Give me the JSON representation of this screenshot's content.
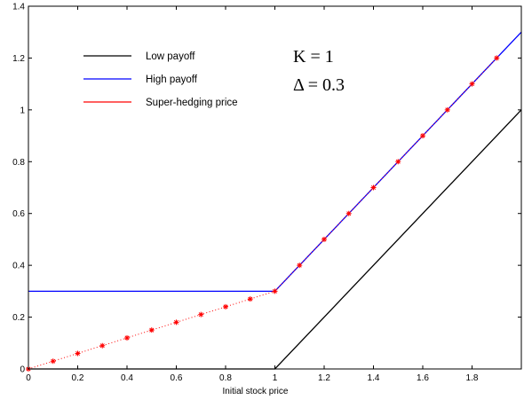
{
  "chart_data": {
    "type": "line",
    "title": "",
    "xlabel": "Initial stock price",
    "ylabel": "",
    "xlim": [
      0,
      2
    ],
    "ylim": [
      0,
      1.4
    ],
    "grid": false,
    "legend": "top-left",
    "x_ticks": [
      "0",
      "0.2",
      "0.4",
      "0.6",
      "0.8",
      "1",
      "1.2",
      "1.4",
      "1.6",
      "1.8"
    ],
    "y_ticks": [
      "0",
      "0.2",
      "0.4",
      "0.6",
      "0.8",
      "1",
      "1.2",
      "1.4"
    ],
    "x_tick_values": [
      0,
      0.2,
      0.4,
      0.6,
      0.8,
      1.0,
      1.2,
      1.4,
      1.6,
      1.8
    ],
    "y_tick_values": [
      0,
      0.2,
      0.4,
      0.6,
      0.8,
      1.0,
      1.2,
      1.4
    ],
    "annotations": [
      "K = 1",
      "Δ = 0.3"
    ],
    "series": [
      {
        "name": "Low payoff",
        "color": "#000000",
        "style": "solid",
        "x": [
          0,
          1.0,
          2.0
        ],
        "y": [
          0,
          0,
          1.0
        ]
      },
      {
        "name": "High payoff",
        "color": "#0000ff",
        "style": "solid",
        "x": [
          0,
          1.0,
          2.0
        ],
        "y": [
          0.3,
          0.3,
          1.3
        ]
      },
      {
        "name": "Super-hedging price",
        "color": "#ff0000",
        "style": "dotted-with-markers",
        "marker": "asterisk",
        "x": [
          0,
          0.1,
          0.2,
          0.3,
          0.4,
          0.5,
          0.6,
          0.7,
          0.8,
          0.9,
          1.0,
          1.1,
          1.2,
          1.3,
          1.4,
          1.5,
          1.6,
          1.7,
          1.8,
          1.9
        ],
        "y": [
          0,
          0.03,
          0.06,
          0.09,
          0.12,
          0.15,
          0.18,
          0.21,
          0.24,
          0.27,
          0.3,
          0.4,
          0.5,
          0.6,
          0.7,
          0.8,
          0.9,
          1.0,
          1.1,
          1.2
        ]
      }
    ]
  }
}
